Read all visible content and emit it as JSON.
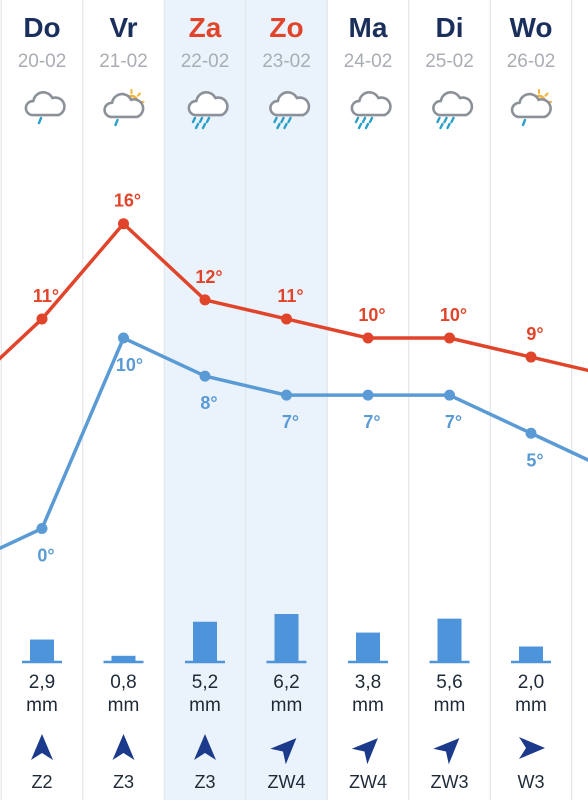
{
  "colors": {
    "max_line": "#e0452b",
    "min_line": "#5b9bd5",
    "weekday_text": "#1b2f5c",
    "weekend_text": "#e0452b",
    "weekend_highlight": "#eaf3fb",
    "column_divider": "#e3e6ea",
    "precip_bar": "#4d94db",
    "wind_arrow": "#1b3a8c"
  },
  "days": [
    {
      "name": "Do",
      "date": "20-02",
      "weekend": false,
      "icon": "cloud-drizzle-icon",
      "max": 11,
      "max_label": "11°",
      "min": 0,
      "min_label": "0°",
      "precip_value": 2.9,
      "precip_label": "2,9",
      "precip_unit": "mm",
      "wind_label": "Z2",
      "wind_direction": "Z"
    },
    {
      "name": "Vr",
      "date": "21-02",
      "weekend": false,
      "icon": "sun-cloud-rain-icon",
      "max": 16,
      "max_label": "16°",
      "min": 10,
      "min_label": "10°",
      "precip_value": 0.8,
      "precip_label": "0,8",
      "precip_unit": "mm",
      "wind_label": "Z3",
      "wind_direction": "Z"
    },
    {
      "name": "Za",
      "date": "22-02",
      "weekend": true,
      "icon": "cloud-heavy-rain-icon",
      "max": 12,
      "max_label": "12°",
      "min": 8,
      "min_label": "8°",
      "precip_value": 5.2,
      "precip_label": "5,2",
      "precip_unit": "mm",
      "wind_label": "Z3",
      "wind_direction": "Z"
    },
    {
      "name": "Zo",
      "date": "23-02",
      "weekend": true,
      "icon": "cloud-heavy-rain-icon",
      "max": 11,
      "max_label": "11°",
      "min": 7,
      "min_label": "7°",
      "precip_value": 6.2,
      "precip_label": "6,2",
      "precip_unit": "mm",
      "wind_label": "ZW4",
      "wind_direction": "ZW"
    },
    {
      "name": "Ma",
      "date": "24-02",
      "weekend": false,
      "icon": "cloud-heavy-rain-icon",
      "max": 10,
      "max_label": "10°",
      "min": 7,
      "min_label": "7°",
      "precip_value": 3.8,
      "precip_label": "3,8",
      "precip_unit": "mm",
      "wind_label": "ZW4",
      "wind_direction": "ZW"
    },
    {
      "name": "Di",
      "date": "25-02",
      "weekend": false,
      "icon": "cloud-heavy-rain-icon",
      "max": 10,
      "max_label": "10°",
      "min": 7,
      "min_label": "7°",
      "precip_value": 5.6,
      "precip_label": "5,6",
      "precip_unit": "mm",
      "wind_label": "ZW3",
      "wind_direction": "ZW"
    },
    {
      "name": "Wo",
      "date": "26-02",
      "weekend": false,
      "icon": "sun-cloud-rain-icon",
      "max": 9,
      "max_label": "9°",
      "min": 5,
      "min_label": "5°",
      "precip_value": 2.0,
      "precip_label": "2,0",
      "precip_unit": "mm",
      "wind_label": "W3",
      "wind_direction": "W"
    }
  ],
  "chart_data": {
    "type": "line",
    "categories": [
      "Do",
      "Vr",
      "Za",
      "Zo",
      "Ma",
      "Di",
      "Wo"
    ],
    "series": [
      {
        "values": [
          11,
          16,
          12,
          11,
          10,
          10,
          9
        ],
        "color": "#e0452b"
      },
      {
        "values": [
          0,
          10,
          8,
          7,
          7,
          7,
          5
        ],
        "color": "#5b9bd5"
      }
    ],
    "edge_left": {
      "max": 7,
      "min": -2
    },
    "edge_right": {
      "max": 8,
      "min": 3
    },
    "precipitation_mm": [
      2.9,
      0.8,
      5.2,
      6.2,
      3.8,
      5.6,
      2.0
    ],
    "title": "",
    "xlabel": "",
    "ylabel": ""
  }
}
